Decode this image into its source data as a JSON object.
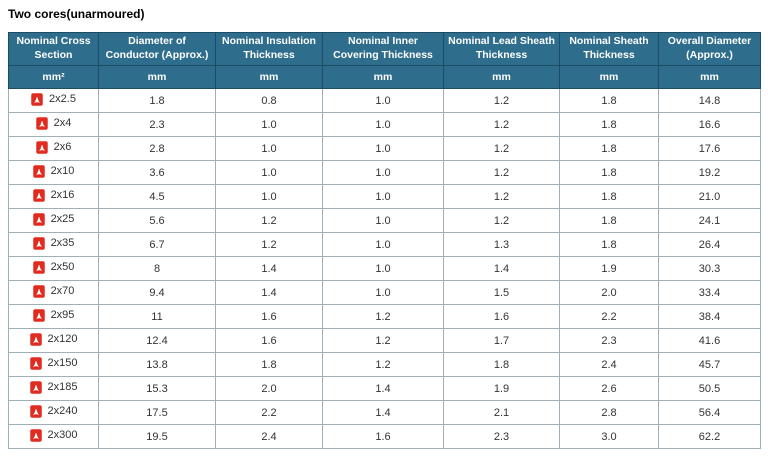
{
  "page": {
    "title": "Two cores(unarmoured)"
  },
  "colors": {
    "header_bg": "#2e6d8c",
    "header_border": "#1d4d66",
    "header_text": "#ffffff",
    "body_border": "#9fb0b8",
    "text": "#333333",
    "pdf_red": "#e02b20"
  },
  "icons": {
    "row_icon": "pdf-icon"
  },
  "chart_data": {
    "type": "table",
    "title": "Two cores(unarmoured)",
    "columns": [
      {
        "label": "Nominal Cross Section",
        "unit": "mm²"
      },
      {
        "label": "Diameter of Conductor (Approx.)",
        "unit": "mm"
      },
      {
        "label": "Nominal Insulation Thickness",
        "unit": "mm"
      },
      {
        "label": "Nominal Inner Covering Thickness",
        "unit": "mm"
      },
      {
        "label": "Nominal Lead Sheath Thickness",
        "unit": "mm"
      },
      {
        "label": "Nominal Sheath Thickness",
        "unit": "mm"
      },
      {
        "label": "Overall Diameter (Approx.)",
        "unit": "mm"
      }
    ],
    "rows": [
      {
        "size": "2x2.5",
        "values": [
          "1.8",
          "0.8",
          "1.0",
          "1.2",
          "1.8",
          "14.8"
        ]
      },
      {
        "size": "2x4",
        "values": [
          "2.3",
          "1.0",
          "1.0",
          "1.2",
          "1.8",
          "16.6"
        ]
      },
      {
        "size": "2x6",
        "values": [
          "2.8",
          "1.0",
          "1.0",
          "1.2",
          "1.8",
          "17.6"
        ]
      },
      {
        "size": "2x10",
        "values": [
          "3.6",
          "1.0",
          "1.0",
          "1.2",
          "1.8",
          "19.2"
        ]
      },
      {
        "size": "2x16",
        "values": [
          "4.5",
          "1.0",
          "1.0",
          "1.2",
          "1.8",
          "21.0"
        ]
      },
      {
        "size": "2x25",
        "values": [
          "5.6",
          "1.2",
          "1.0",
          "1.2",
          "1.8",
          "24.1"
        ]
      },
      {
        "size": "2x35",
        "values": [
          "6.7",
          "1.2",
          "1.0",
          "1.3",
          "1.8",
          "26.4"
        ]
      },
      {
        "size": "2x50",
        "values": [
          "8",
          "1.4",
          "1.0",
          "1.4",
          "1.9",
          "30.3"
        ]
      },
      {
        "size": "2x70",
        "values": [
          "9.4",
          "1.4",
          "1.0",
          "1.5",
          "2.0",
          "33.4"
        ]
      },
      {
        "size": "2x95",
        "values": [
          "11",
          "1.6",
          "1.2",
          "1.6",
          "2.2",
          "38.4"
        ]
      },
      {
        "size": "2x120",
        "values": [
          "12.4",
          "1.6",
          "1.2",
          "1.7",
          "2.3",
          "41.6"
        ]
      },
      {
        "size": "2x150",
        "values": [
          "13.8",
          "1.8",
          "1.2",
          "1.8",
          "2.4",
          "45.7"
        ]
      },
      {
        "size": "2x185",
        "values": [
          "15.3",
          "2.0",
          "1.4",
          "1.9",
          "2.6",
          "50.5"
        ]
      },
      {
        "size": "2x240",
        "values": [
          "17.5",
          "2.2",
          "1.4",
          "2.1",
          "2.8",
          "56.4"
        ]
      },
      {
        "size": "2x300",
        "values": [
          "19.5",
          "2.4",
          "1.6",
          "2.3",
          "3.0",
          "62.2"
        ]
      }
    ]
  }
}
